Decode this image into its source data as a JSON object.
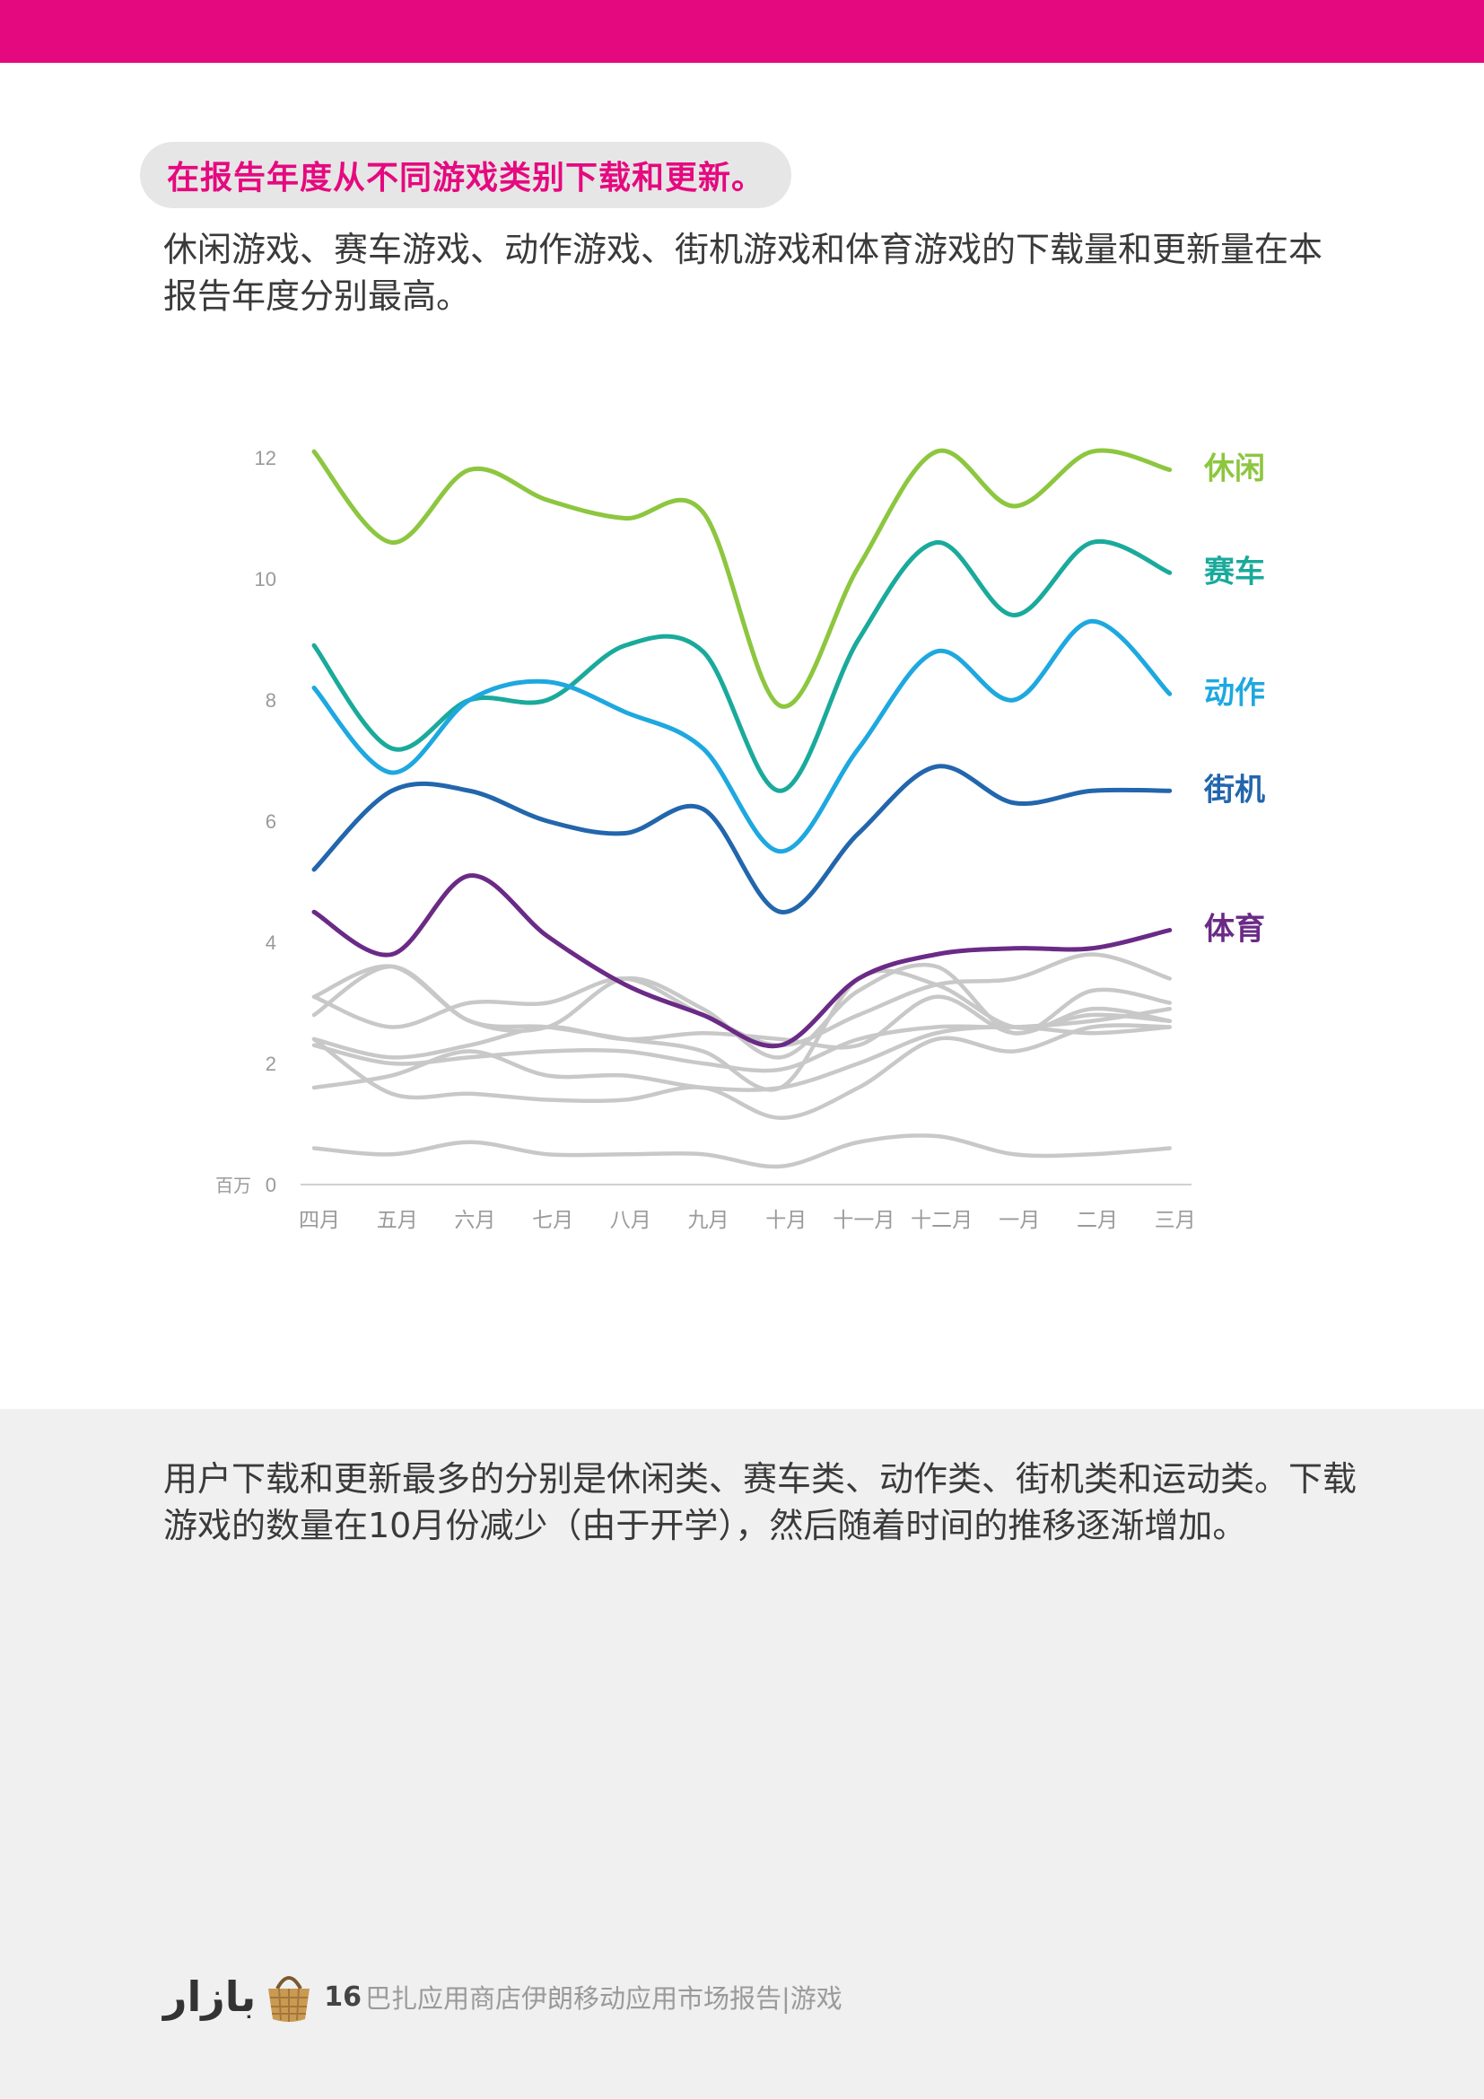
{
  "header": {
    "section_title": "在报告年度从不同游戏类别下载和更新。",
    "intro": "休闲游戏、赛车游戏、动作游戏、街机游戏和体育游戏的下载量和更新量在本报告年度分别最高。"
  },
  "chart_data": {
    "type": "line",
    "title": "",
    "xlabel": "",
    "ylabel": "",
    "unit_label": "百万",
    "ylim": [
      0,
      12
    ],
    "y_ticks": [
      0,
      2,
      4,
      6,
      8,
      10,
      12
    ],
    "categories": [
      "四月",
      "五月",
      "六月",
      "七月",
      "八月",
      "九月",
      "十月",
      "十一月",
      "十二月",
      "一月",
      "二月",
      "三月"
    ],
    "series": [
      {
        "name": "休闲",
        "color": "#8dc63f",
        "values": [
          12.1,
          10.6,
          11.8,
          11.3,
          11.0,
          11.1,
          7.9,
          10.2,
          12.1,
          11.2,
          12.1,
          11.8
        ]
      },
      {
        "name": "赛车",
        "color": "#1aaa9b",
        "values": [
          8.9,
          7.2,
          8.0,
          8.0,
          8.9,
          8.8,
          6.5,
          9.0,
          10.6,
          9.4,
          10.6,
          10.1
        ]
      },
      {
        "name": "动作",
        "color": "#1ea8e0",
        "values": [
          8.2,
          6.8,
          8.0,
          8.3,
          7.8,
          7.2,
          5.5,
          7.2,
          8.8,
          8.0,
          9.3,
          8.1
        ]
      },
      {
        "name": "街机",
        "color": "#2266ad",
        "values": [
          5.2,
          6.5,
          6.5,
          6.0,
          5.8,
          6.2,
          4.5,
          5.8,
          6.9,
          6.3,
          6.5,
          6.5
        ]
      },
      {
        "name": "体育",
        "color": "#6a2a86",
        "values": [
          4.5,
          3.8,
          5.1,
          4.1,
          3.3,
          2.8,
          2.3,
          3.4,
          3.8,
          3.9,
          3.9,
          4.2
        ]
      },
      {
        "color": "#c8c8c8",
        "values": [
          3.1,
          3.6,
          2.7,
          2.6,
          3.4,
          2.9,
          2.1,
          3.2,
          3.6,
          2.5,
          3.2,
          3.0
        ]
      },
      {
        "color": "#c8c8c8",
        "values": [
          2.8,
          3.6,
          2.7,
          2.6,
          2.4,
          2.2,
          1.6,
          3.4,
          3.3,
          2.6,
          2.8,
          2.7
        ]
      },
      {
        "color": "#c8c8c8",
        "values": [
          3.1,
          2.6,
          3.0,
          3.0,
          3.4,
          2.8,
          2.3,
          2.8,
          3.3,
          3.4,
          3.8,
          3.4
        ]
      },
      {
        "color": "#c8c8c8",
        "values": [
          2.4,
          1.5,
          1.5,
          1.4,
          1.4,
          1.6,
          1.1,
          1.6,
          2.4,
          2.2,
          2.6,
          2.6
        ]
      },
      {
        "color": "#c8c8c8",
        "values": [
          2.4,
          2.1,
          2.3,
          2.6,
          2.4,
          2.5,
          2.4,
          2.3,
          3.1,
          2.5,
          2.9,
          2.7
        ]
      },
      {
        "color": "#c8c8c8",
        "values": [
          1.6,
          1.8,
          2.2,
          1.8,
          1.8,
          1.6,
          1.6,
          2.0,
          2.5,
          2.6,
          2.5,
          2.6
        ]
      },
      {
        "color": "#c8c8c8",
        "values": [
          2.3,
          2.0,
          2.1,
          2.2,
          2.2,
          2.0,
          1.9,
          2.4,
          2.6,
          2.6,
          2.7,
          2.9
        ]
      },
      {
        "color": "#c8c8c8",
        "values": [
          0.6,
          0.5,
          0.7,
          0.5,
          0.5,
          0.5,
          0.3,
          0.7,
          0.8,
          0.5,
          0.5,
          0.6
        ]
      }
    ]
  },
  "summary": "用户下载和更新最多的分别是休闲类、赛车类、动作类、街机类和运动类。下载游戏的数量在10月份减少（由于开学），然后随着时间的推移逐渐增加。",
  "footer": {
    "logo_text": "ﺑﺎﺯﺍﺭ",
    "page_number": "16",
    "report_title": "巴扎应用商店伊朗移动应用市场报告|游戏"
  }
}
